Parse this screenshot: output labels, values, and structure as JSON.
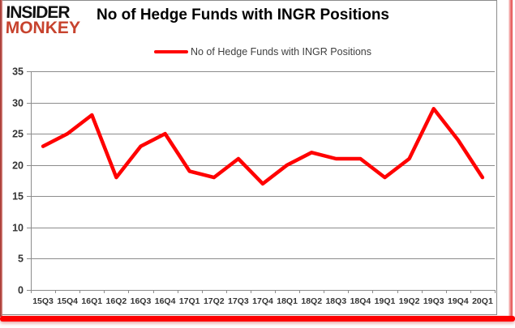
{
  "logo": {
    "line1": "INSIDER",
    "line2": "MONKEY"
  },
  "header": {
    "title": "No of Hedge Funds with INGR Positions"
  },
  "legend": {
    "label": "No of Hedge Funds with INGR Positions"
  },
  "colors": {
    "series_line": "#ff0000",
    "gridline": "#8c8c8c",
    "axis": "#8c8c8c",
    "tick_label": "#333333",
    "title_text": "#000000",
    "legend_text": "#3f3f3f",
    "logo_black": "#111111",
    "logo_red": "#c7432e",
    "bottom_bar": "#fe0000",
    "left_stripe": "#9e2b25",
    "right_stripe": "#e86060"
  },
  "chart_data": {
    "type": "line",
    "title": "No of Hedge Funds with INGR Positions",
    "categories": [
      "15Q3",
      "15Q4",
      "16Q1",
      "16Q2",
      "16Q3",
      "16Q4",
      "17Q1",
      "17Q2",
      "17Q3",
      "17Q4",
      "18Q1",
      "18Q2",
      "18Q3",
      "18Q4",
      "19Q1",
      "19Q2",
      "19Q3",
      "19Q4",
      "20Q1"
    ],
    "series": [
      {
        "name": "No of Hedge Funds with INGR Positions",
        "values": [
          23,
          25,
          28,
          18,
          23,
          25,
          19,
          18,
          21,
          17,
          20,
          22,
          21,
          21,
          18,
          21,
          29,
          24,
          18
        ]
      }
    ],
    "xlabel": "",
    "ylabel": "",
    "ylim": [
      0,
      35
    ],
    "ytick_step": 5,
    "grid": true,
    "legend_position": "top-center"
  }
}
